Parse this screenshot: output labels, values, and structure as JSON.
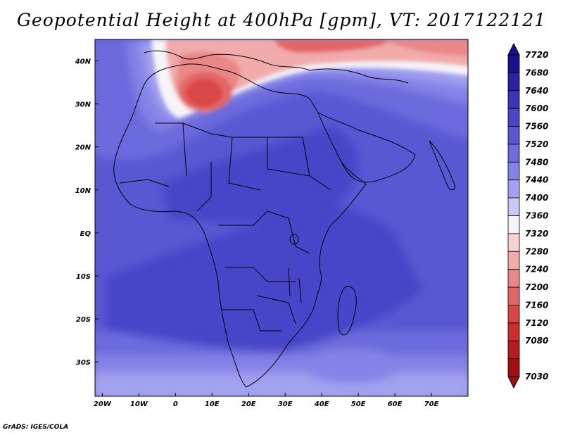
{
  "title": "Geopotential Height at 400hPa [gpm], VT: 2017122121",
  "footer": "GrADS: IGES/COLA",
  "map": {
    "region": "Africa",
    "lon_range": [
      -22,
      80
    ],
    "lat_range": [
      -38,
      45
    ],
    "x_ticks": [
      {
        "lon": -20,
        "label": "20W"
      },
      {
        "lon": -10,
        "label": "10W"
      },
      {
        "lon": 0,
        "label": "0"
      },
      {
        "lon": 10,
        "label": "10E"
      },
      {
        "lon": 20,
        "label": "20E"
      },
      {
        "lon": 30,
        "label": "30E"
      },
      {
        "lon": 40,
        "label": "40E"
      },
      {
        "lon": 50,
        "label": "50E"
      },
      {
        "lon": 60,
        "label": "60E"
      },
      {
        "lon": 70,
        "label": "70E"
      }
    ],
    "y_ticks": [
      {
        "lat": 40,
        "label": "40N"
      },
      {
        "lat": 30,
        "label": "30N"
      },
      {
        "lat": 20,
        "label": "20N"
      },
      {
        "lat": 10,
        "label": "10N"
      },
      {
        "lat": 0,
        "label": "EQ"
      },
      {
        "lat": -10,
        "label": "10S"
      },
      {
        "lat": -20,
        "label": "20S"
      },
      {
        "lat": -30,
        "label": "30S"
      }
    ]
  },
  "colorbar": {
    "levels": [
      {
        "label": "7720",
        "color": "#1a0f8c"
      },
      {
        "label": "7680",
        "color": "#2a21a3"
      },
      {
        "label": "7640",
        "color": "#3b33b8"
      },
      {
        "label": "7600",
        "color": "#4a45c8"
      },
      {
        "label": "7560",
        "color": "#5a57d3"
      },
      {
        "label": "7520",
        "color": "#6d6bdd"
      },
      {
        "label": "7480",
        "color": "#8583e7"
      },
      {
        "label": "7440",
        "color": "#a3a2f0"
      },
      {
        "label": "7400",
        "color": "#c9c8f7"
      },
      {
        "label": "7360",
        "color": "#f6f4f7"
      },
      {
        "label": "7320",
        "color": "#f7d2d3"
      },
      {
        "label": "7280",
        "color": "#f1abab"
      },
      {
        "label": "7240",
        "color": "#ea8787"
      },
      {
        "label": "7200",
        "color": "#e36666"
      },
      {
        "label": "7160",
        "color": "#da4646"
      },
      {
        "label": "7120",
        "color": "#cc2e2e"
      },
      {
        "label": "7080",
        "color": "#b81c1c"
      },
      {
        "label": "7030",
        "color": "#a01010"
      }
    ],
    "top_arrow_color": "#1a0f8c",
    "bottom_arrow_color": "#a01010"
  }
}
